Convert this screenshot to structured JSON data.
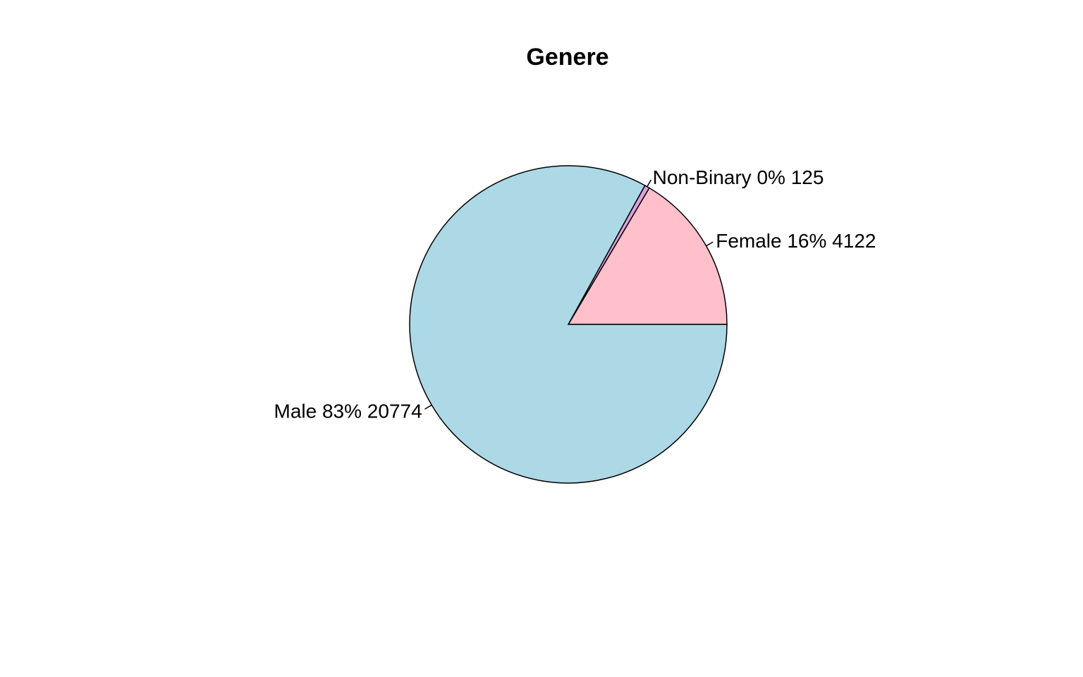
{
  "chart_data": {
    "type": "pie",
    "title": "Genere",
    "slices": [
      {
        "category": "Female",
        "value": 4122,
        "percent_label": "16%",
        "label": "Female 16% 4122",
        "color": "#FFC0CB"
      },
      {
        "category": "Non-Binary",
        "value": 125,
        "percent_label": "0%",
        "label": "Non-Binary 0% 125",
        "color": "#DDA0DD"
      },
      {
        "category": "Male",
        "value": 20774,
        "percent_label": "83%",
        "label": "Male 83% 20774",
        "color": "#ADD8E6"
      }
    ],
    "start_angle_degrees": 0,
    "direction": "counterclockwise",
    "legend": "none"
  }
}
